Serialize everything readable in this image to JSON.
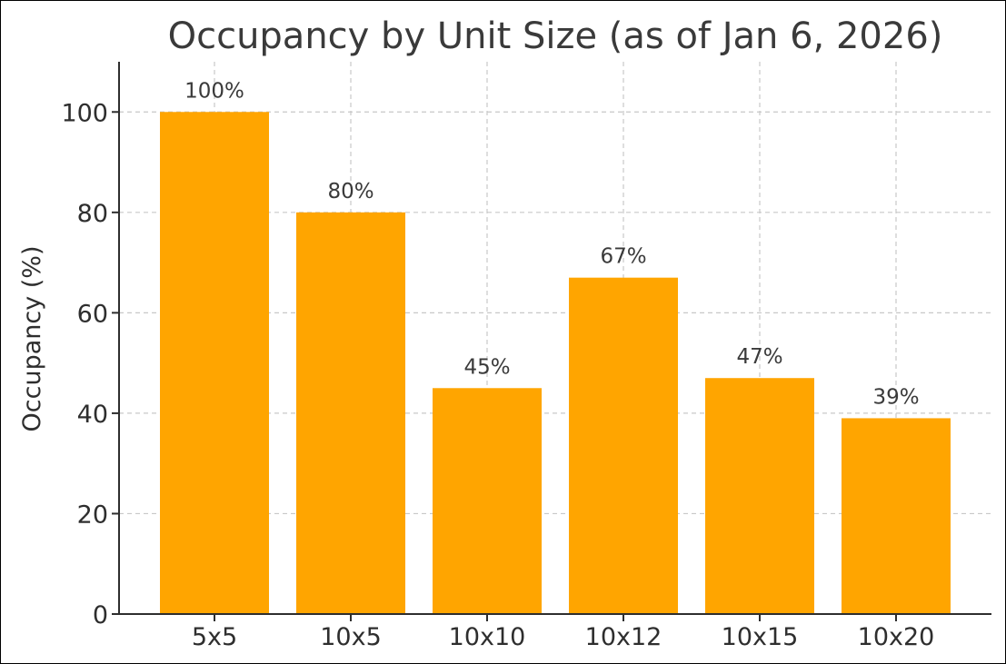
{
  "chart_data": {
    "type": "bar",
    "title": "Occupancy by Unit Size (as of Jan 6, 2026)",
    "xlabel": "",
    "ylabel": "Occupancy (%)",
    "categories": [
      "5x5",
      "10x5",
      "10x10",
      "10x12",
      "10x15",
      "10x20"
    ],
    "values": [
      100,
      80,
      45,
      67,
      47,
      39
    ],
    "value_labels": [
      "100%",
      "80%",
      "45%",
      "67%",
      "47%",
      "39%"
    ],
    "ylim": [
      0,
      110
    ],
    "yticks": [
      0,
      20,
      40,
      60,
      80,
      100
    ],
    "grid": true,
    "bar_color": "#FFA500"
  }
}
